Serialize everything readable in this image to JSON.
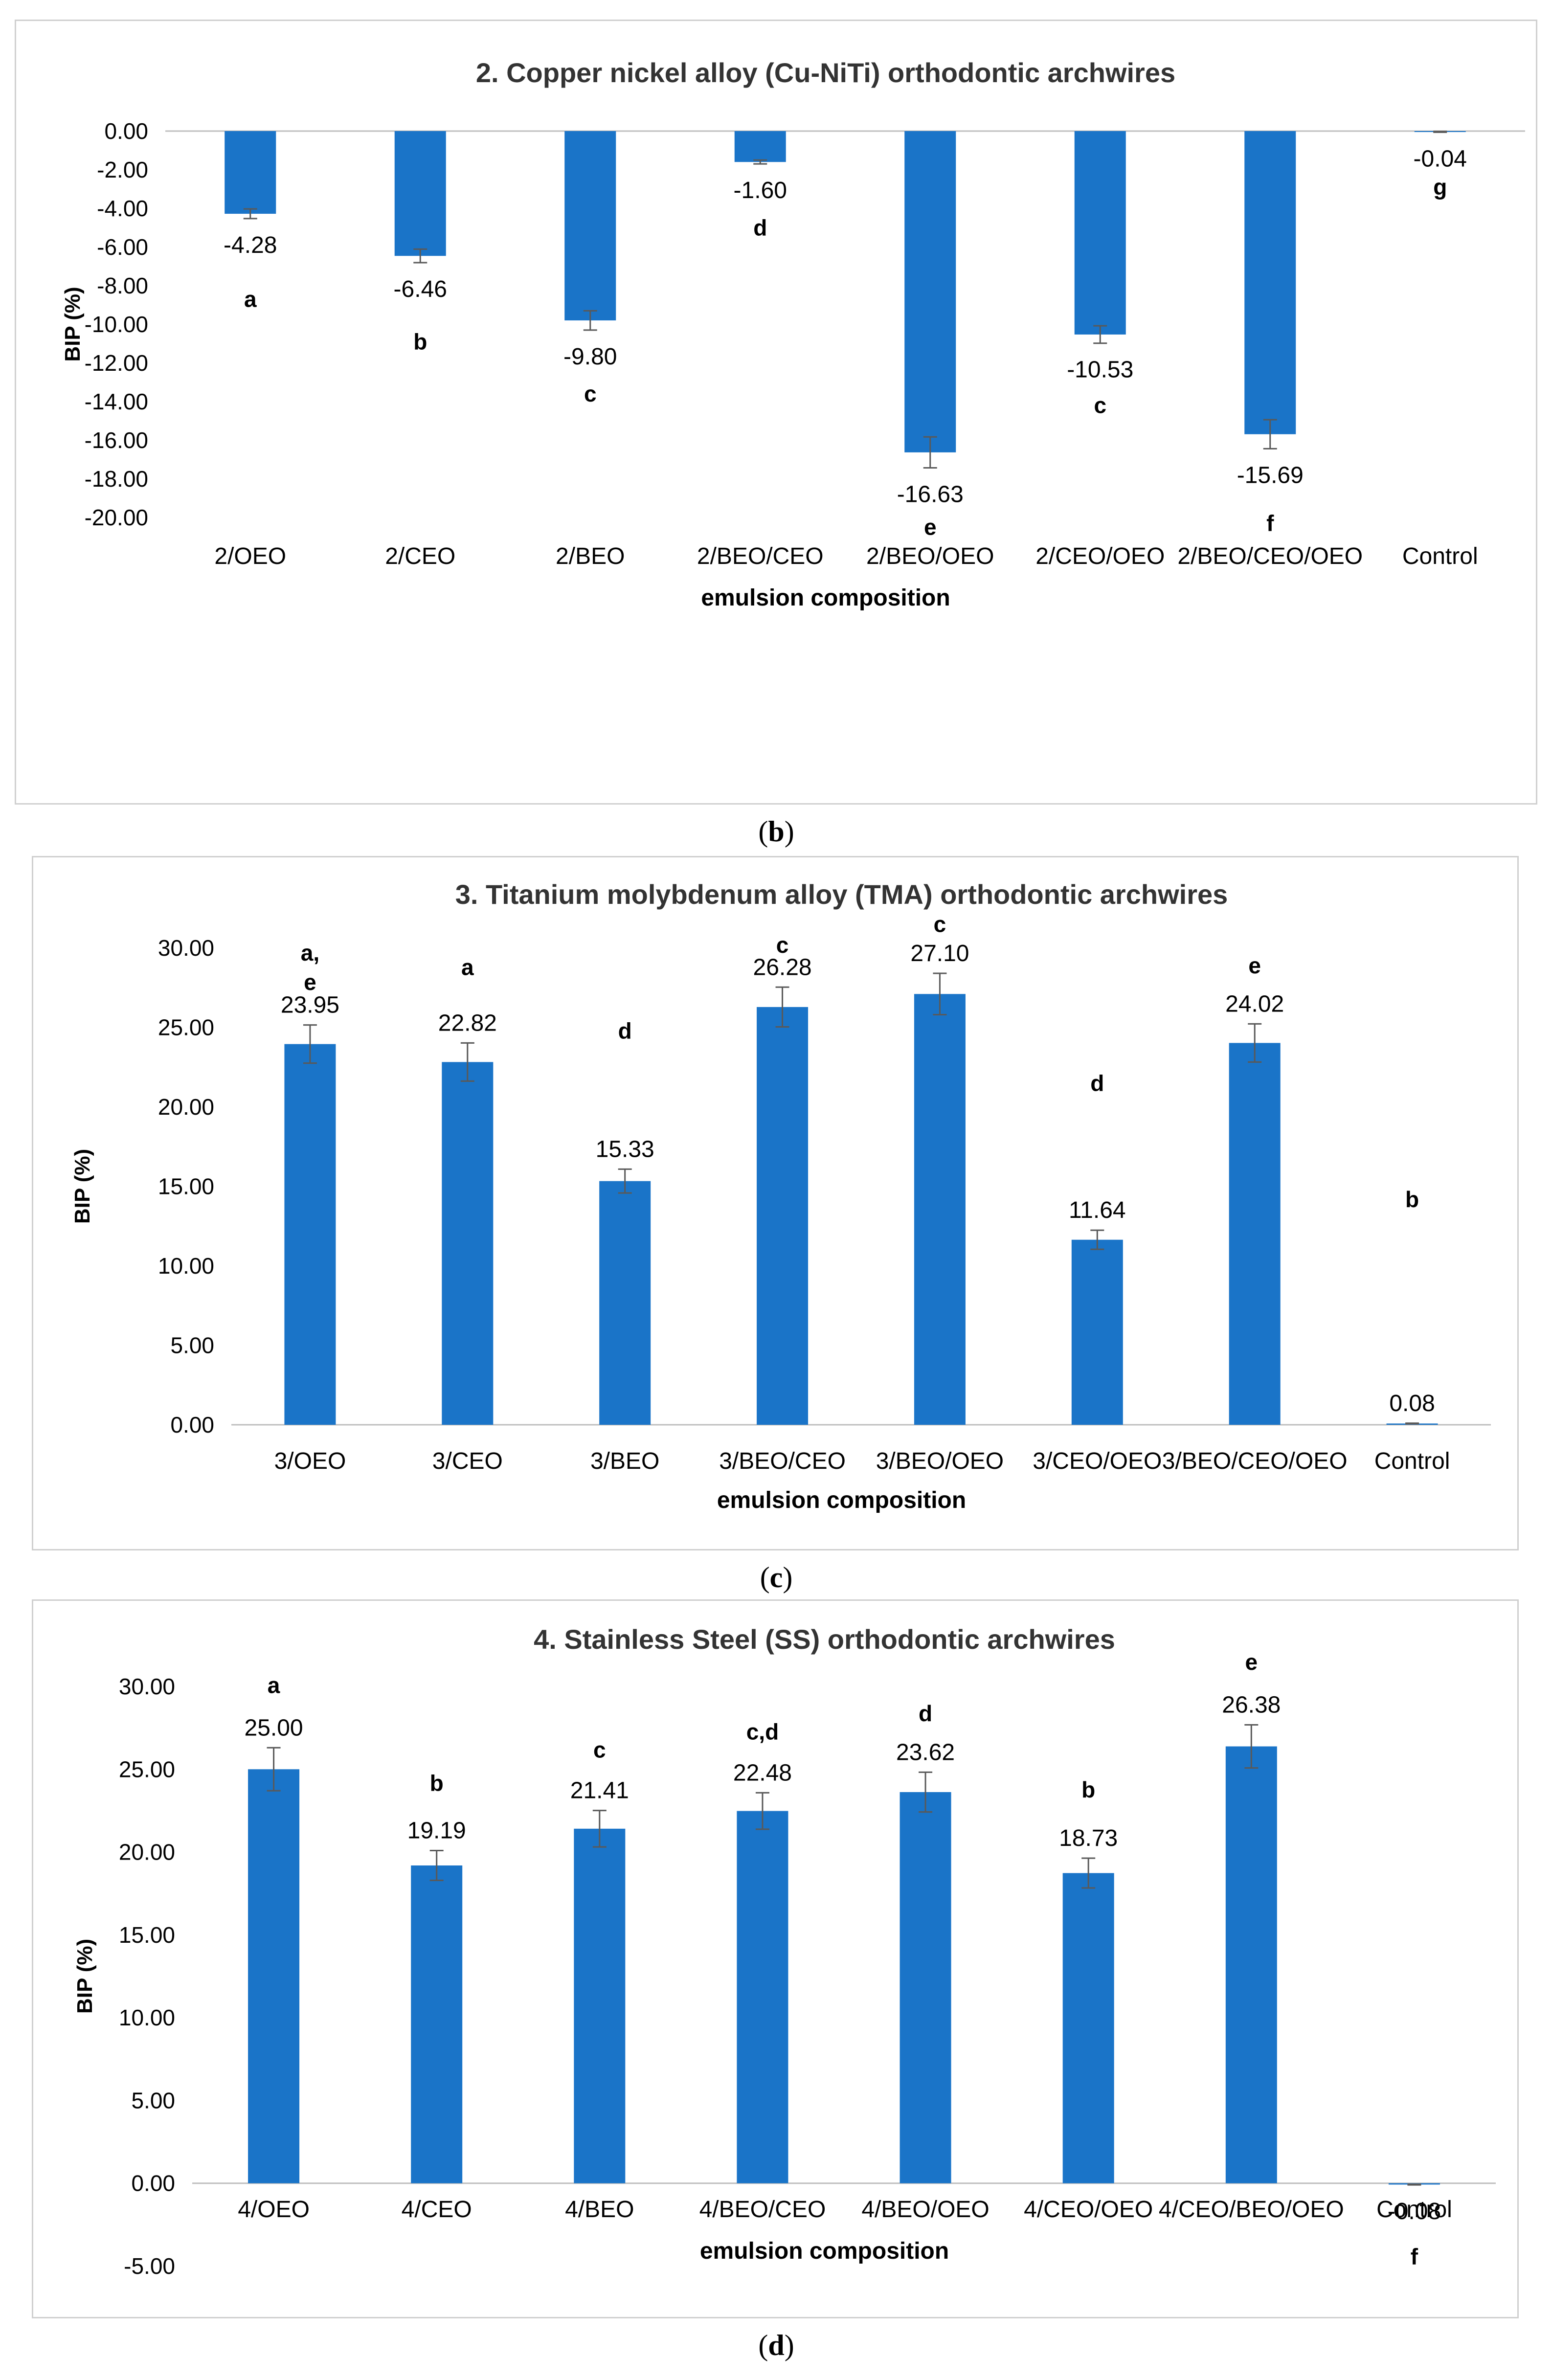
{
  "colors": {
    "bar": "#1a74c8",
    "grid": "#d9d9d9",
    "axis": "#bfbfbf",
    "errorbar": "#595959",
    "border": "#d0d0d0"
  },
  "figures": [
    {
      "caption": {
        "open": "(",
        "letter": "b",
        "close": ")"
      }
    },
    {
      "caption": {
        "open": "(",
        "letter": "c",
        "close": ")"
      }
    },
    {
      "caption": {
        "open": "(",
        "letter": "d",
        "close": ")"
      }
    }
  ],
  "chart_data": [
    {
      "type": "bar",
      "title": "2. Copper nickel alloy (Cu-NiTi) orthodontic archwires",
      "xlabel": "emulsion composition",
      "ylabel": "BIP (%)",
      "ylim": [
        -20,
        0
      ],
      "ystep": 2,
      "yticks": [
        "0.00",
        "-2.00",
        "-4.00",
        "-6.00",
        "-8.00",
        "-10.00",
        "-12.00",
        "-14.00",
        "-16.00",
        "-18.00",
        "-20.00"
      ],
      "categories": [
        "2/OEO",
        "2/CEO",
        "2/BEO",
        "2/BEO/CEO",
        "2/BEO/OEO",
        "2/CEO/OEO",
        "2/BEO/CEO/OEO",
        "Control"
      ],
      "values": [
        -4.28,
        -6.46,
        -9.8,
        -1.6,
        -16.63,
        -10.53,
        -15.69,
        -0.04
      ],
      "value_labels": [
        "-4.28",
        "-6.46",
        "-9.80",
        "-1.60",
        "-16.63",
        "-10.53",
        "-15.69",
        "-0.04"
      ],
      "errors": [
        0.25,
        0.35,
        0.5,
        0.1,
        0.8,
        0.45,
        0.75,
        0.02
      ],
      "letters": [
        "a",
        "b",
        "c",
        "d",
        "e",
        "c",
        "f",
        "g"
      ],
      "letter_values": [
        -9.1,
        -11.3,
        -14.0,
        -5.4,
        -20.9,
        -14.6,
        -20.7,
        -3.3
      ]
    },
    {
      "type": "bar",
      "title": "3. Titanium molybdenum alloy (TMA) orthodontic archwires",
      "xlabel": "emulsion composition",
      "ylabel": "BIP (%)",
      "ylim": [
        0,
        30
      ],
      "ystep": 5,
      "yticks": [
        "0.00",
        "5.00",
        "10.00",
        "15.00",
        "20.00",
        "25.00",
        "30.00"
      ],
      "categories": [
        "3/OEO",
        "3/CEO",
        "3/BEO",
        "3/BEO/CEO",
        "3/BEO/OEO",
        "3/CEO/OEO",
        "3/BEO/CEO/OEO",
        "Control"
      ],
      "values": [
        23.95,
        22.82,
        15.33,
        26.28,
        27.1,
        11.64,
        24.02,
        0.08
      ],
      "value_labels": [
        "23.95",
        "22.82",
        "15.33",
        "26.28",
        "27.10",
        "11.64",
        "24.02",
        "0.08"
      ],
      "errors": [
        1.2,
        1.2,
        0.75,
        1.25,
        1.3,
        0.6,
        1.2,
        0.02
      ],
      "letters": [
        "a,\ne",
        "a",
        "d",
        "c",
        "c",
        "d",
        "e",
        "b"
      ],
      "letter_values": [
        29.2,
        28.3,
        24.3,
        29.7,
        31.0,
        21.0,
        28.4,
        13.7
      ]
    },
    {
      "type": "bar",
      "title": "4. Stainless Steel (SS) orthodontic archwires",
      "xlabel": "emulsion composition",
      "ylabel": "BIP (%)",
      "ylim": [
        -5,
        30
      ],
      "ystep": 5,
      "yticks": [
        "-5.00",
        "0.00",
        "5.00",
        "10.00",
        "15.00",
        "20.00",
        "25.00",
        "30.00"
      ],
      "categories": [
        "4/OEO",
        "4/CEO",
        "4/BEO",
        "4/BEO/CEO",
        "4/BEO/OEO",
        "4/CEO/OEO",
        "4/CEO/BEO/OEO",
        "Control"
      ],
      "values": [
        25.0,
        19.19,
        21.41,
        22.48,
        23.62,
        18.73,
        26.38,
        -0.08
      ],
      "value_labels": [
        "25.00",
        "19.19",
        "21.41",
        "22.48",
        "23.62",
        "18.73",
        "26.38",
        "-0.08"
      ],
      "errors": [
        1.3,
        0.9,
        1.1,
        1.1,
        1.2,
        0.9,
        1.3,
        0.02
      ],
      "letters": [
        "a",
        "b",
        "c",
        "c,d",
        "d",
        "b",
        "e",
        "f"
      ],
      "letter_values": [
        29.6,
        23.7,
        25.7,
        26.8,
        27.9,
        23.3,
        31.0,
        -4.9
      ]
    }
  ]
}
